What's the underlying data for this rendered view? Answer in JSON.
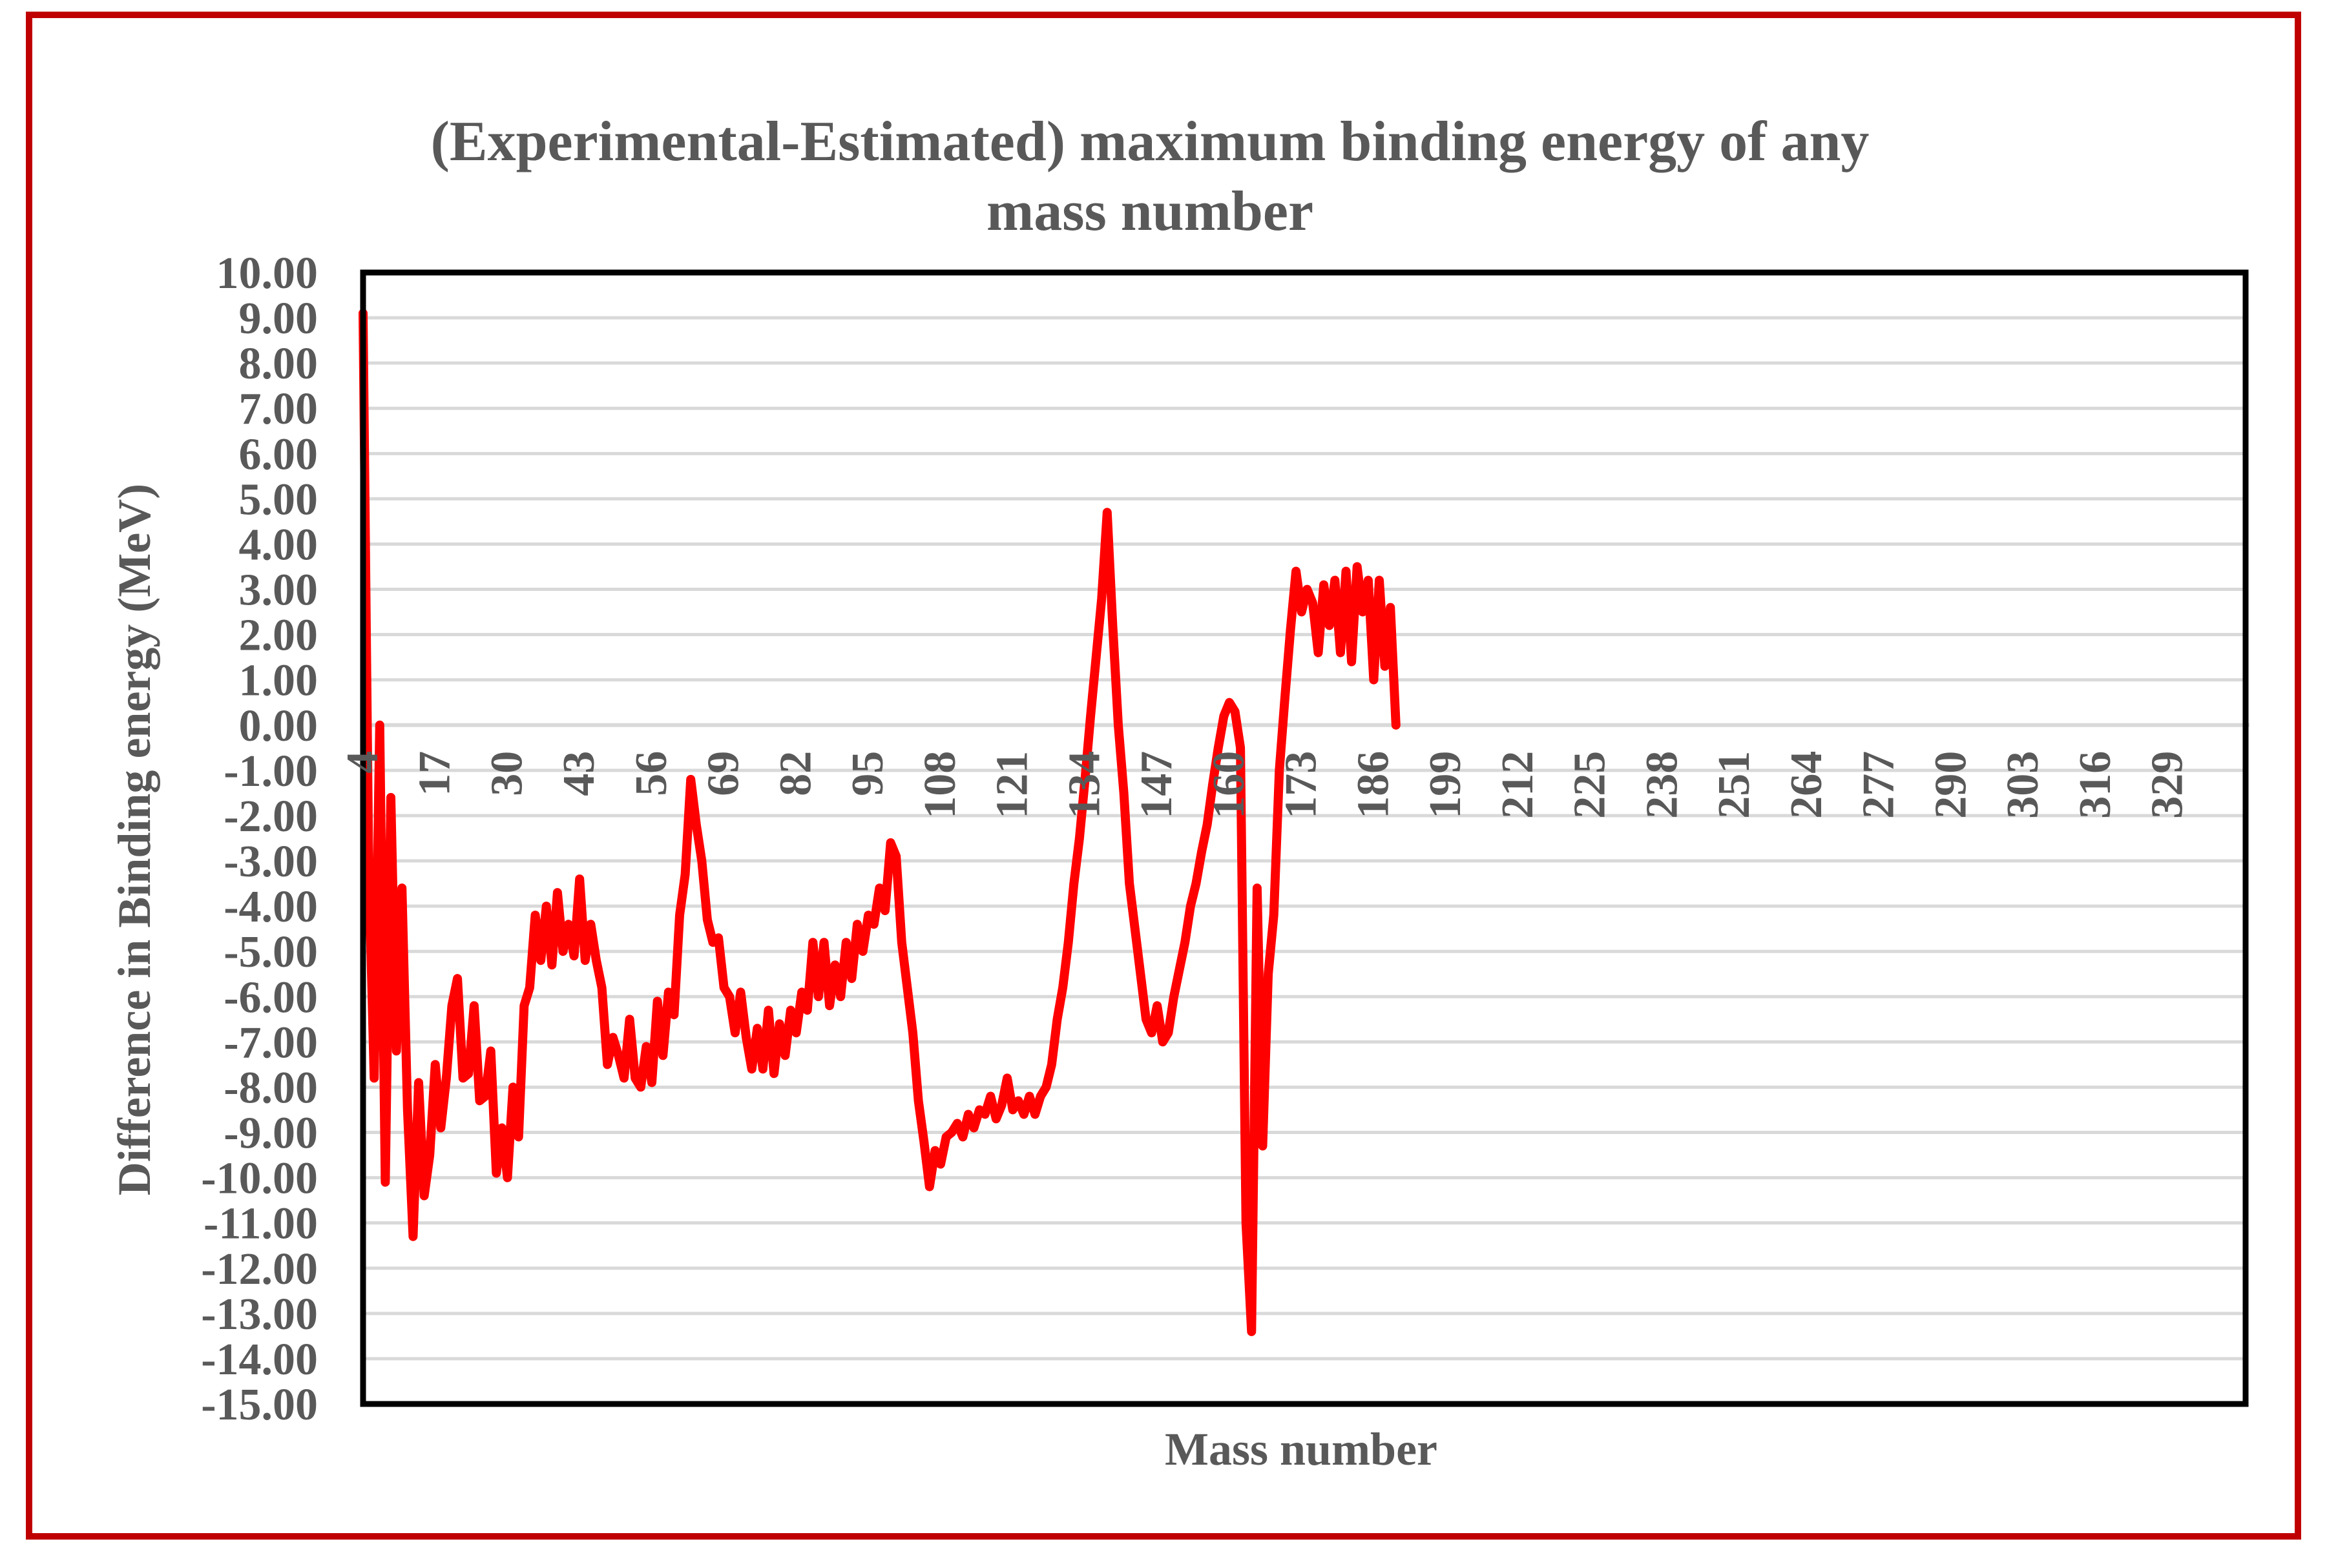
{
  "chart_data": {
    "type": "line",
    "title": "(Experimental-Estimated) maximum binding energy of any mass number",
    "title_lines": [
      "(Experimental-Estimated) maximum binding energy of any",
      "mass number"
    ],
    "xlabel": "Mass number",
    "ylabel": "Difference in Binding energy (MeV)",
    "ylim": [
      -15,
      10
    ],
    "y_ticks": [
      "10.00",
      "9.00",
      "8.00",
      "7.00",
      "6.00",
      "5.00",
      "4.00",
      "3.00",
      "2.00",
      "1.00",
      "0.00",
      "-1.00",
      "-2.00",
      "-3.00",
      "-4.00",
      "-5.00",
      "-6.00",
      "-7.00",
      "-8.00",
      "-9.00",
      "-10.00",
      "-11.00",
      "-12.00",
      "-13.00",
      "-14.00",
      "-15.00"
    ],
    "xlim": [
      4,
      343
    ],
    "x_ticks": [
      "4",
      "17",
      "30",
      "43",
      "56",
      "69",
      "82",
      "95",
      "108",
      "121",
      "134",
      "147",
      "160",
      "173",
      "186",
      "199",
      "212",
      "225",
      "238",
      "251",
      "264",
      "277",
      "290",
      "303",
      "316",
      "329"
    ],
    "grid": true,
    "line_color": "#ff0000",
    "frame_color": "#c00000",
    "series": [
      {
        "name": "Experimental-Estimated",
        "x": [
          4,
          5,
          6,
          7,
          8,
          9,
          10,
          11,
          12,
          13,
          14,
          15,
          16,
          17,
          18,
          19,
          20,
          21,
          22,
          23,
          24,
          25,
          26,
          27,
          28,
          29,
          30,
          31,
          32,
          33,
          34,
          35,
          36,
          37,
          38,
          39,
          40,
          41,
          42,
          43,
          44,
          45,
          46,
          47,
          48,
          49,
          50,
          51,
          52,
          53,
          54,
          55,
          56,
          57,
          58,
          59,
          60,
          61,
          62,
          63,
          64,
          65,
          66,
          67,
          68,
          69,
          70,
          71,
          72,
          73,
          74,
          75,
          76,
          77,
          78,
          79,
          80,
          81,
          82,
          83,
          84,
          85,
          86,
          87,
          88,
          89,
          90,
          91,
          92,
          93,
          94,
          95,
          96,
          97,
          98,
          99,
          100,
          101,
          102,
          103,
          104,
          105,
          106,
          107,
          108,
          109,
          110,
          111,
          112,
          113,
          114,
          115,
          116,
          117,
          118,
          119,
          120,
          121,
          122,
          123,
          124,
          125,
          126,
          127,
          128,
          129,
          130,
          131,
          132,
          133,
          134,
          135,
          136,
          137,
          138,
          139,
          140,
          141,
          142,
          143,
          144,
          145,
          146,
          147,
          148,
          149,
          150,
          151,
          152,
          153,
          154,
          155,
          156,
          157,
          158,
          159,
          160,
          161,
          162,
          163,
          164,
          165,
          166,
          167,
          168,
          169,
          170,
          171,
          172,
          173,
          174,
          175,
          176,
          177,
          178,
          179,
          180,
          181,
          182,
          183,
          184,
          185,
          186,
          187,
          188,
          189,
          190,
          191,
          192,
          193,
          194,
          195,
          196,
          197,
          198,
          199,
          200,
          201,
          202,
          203,
          204,
          205,
          206,
          207,
          208,
          209,
          210,
          211,
          212,
          213,
          214,
          215,
          216,
          217,
          218,
          219,
          220,
          221,
          222,
          223,
          224,
          225,
          226,
          227,
          228,
          229,
          230,
          231,
          232,
          233,
          234,
          235,
          236,
          237,
          238,
          239,
          240,
          241,
          242,
          243,
          244,
          245,
          246,
          247,
          248,
          249,
          250,
          251,
          252,
          253,
          254,
          255,
          256,
          257,
          258,
          259,
          260,
          261,
          262,
          263,
          264,
          265,
          266,
          267,
          268,
          269,
          270,
          271,
          272,
          273,
          274,
          275,
          276,
          277,
          278,
          279,
          280,
          281,
          282,
          283,
          284,
          285,
          286,
          287,
          288,
          289,
          290,
          291,
          292,
          293,
          294,
          295,
          296,
          297
        ],
        "values": [
          9.1,
          -3.0,
          -7.8,
          0.0,
          -10.1,
          -1.6,
          -7.2,
          -3.6,
          -8.5,
          -11.3,
          -7.9,
          -10.4,
          -9.5,
          -7.5,
          -8.9,
          -7.8,
          -6.2,
          -5.6,
          -7.8,
          -7.7,
          -6.2,
          -8.3,
          -8.2,
          -7.2,
          -9.9,
          -8.9,
          -10.0,
          -8.0,
          -9.1,
          -6.2,
          -5.8,
          -4.2,
          -5.2,
          -4.0,
          -5.3,
          -3.7,
          -5.0,
          -4.4,
          -5.1,
          -3.4,
          -5.2,
          -4.4,
          -5.2,
          -5.8,
          -7.5,
          -6.9,
          -7.3,
          -7.8,
          -6.5,
          -7.8,
          -8.0,
          -7.1,
          -7.9,
          -6.1,
          -7.3,
          -5.9,
          -6.4,
          -4.2,
          -3.3,
          -1.2,
          -2.2,
          -3.0,
          -4.3,
          -4.8,
          -4.7,
          -5.8,
          -6.0,
          -6.8,
          -5.9,
          -6.9,
          -7.6,
          -6.7,
          -7.6,
          -6.3,
          -7.7,
          -6.6,
          -7.3,
          -6.3,
          -6.8,
          -5.9,
          -6.3,
          -4.8,
          -6.0,
          -4.8,
          -6.2,
          -5.3,
          -6.0,
          -4.8,
          -5.6,
          -4.4,
          -5.0,
          -4.2,
          -4.4,
          -3.6,
          -4.1,
          -2.6,
          -2.9,
          -4.8,
          -5.8,
          -6.8,
          -8.3,
          -9.2,
          -10.2,
          -9.4,
          -9.7,
          -9.1,
          -9.0,
          -8.8,
          -9.1,
          -8.6,
          -8.9,
          -8.5,
          -8.6,
          -8.2,
          -8.7,
          -8.4,
          -7.8,
          -8.5,
          -8.3,
          -8.6,
          -8.2,
          -8.6,
          -8.2,
          -8.0,
          -7.5,
          -6.5,
          -5.8,
          -4.8,
          -3.5,
          -2.5,
          -1.2,
          0.2,
          1.5,
          2.8,
          4.7,
          2.2,
          0.0,
          -1.5,
          -3.5,
          -4.5,
          -5.5,
          -6.5,
          -6.8,
          -6.2,
          -7.0,
          -6.8,
          -6.0,
          -5.4,
          -4.8,
          -4.0,
          -3.5,
          -2.8,
          -2.2,
          -1.3,
          -0.5,
          0.2,
          0.5,
          0.3,
          -0.5,
          -11.0,
          -13.4,
          -3.6,
          -9.3,
          -5.5,
          -4.2,
          -1.0,
          0.6,
          2.1,
          3.4,
          2.5,
          3.0,
          2.7,
          1.6,
          3.1,
          2.2,
          3.2,
          1.6,
          3.4,
          1.4,
          3.5,
          2.5,
          3.2,
          1.0,
          3.2,
          1.3,
          2.6,
          0.0,
          null,
          null,
          null,
          null,
          null,
          null,
          null,
          null,
          null,
          null,
          null,
          null,
          null,
          null,
          null,
          null,
          null,
          null,
          null,
          null,
          null,
          null,
          null,
          null,
          null,
          null,
          null,
          null,
          null,
          null,
          null,
          null,
          null,
          null,
          null,
          null,
          null,
          null,
          null,
          null,
          null,
          null,
          null,
          null,
          null,
          null,
          null,
          null,
          null,
          null,
          null,
          null,
          null,
          null,
          null,
          null,
          null,
          null,
          null,
          null,
          null,
          null,
          null,
          null,
          null,
          null,
          null,
          null,
          null,
          null,
          null,
          null,
          null,
          null,
          null,
          null,
          null,
          null,
          null,
          null,
          null,
          null,
          null,
          null,
          null,
          null,
          null,
          null,
          null,
          null,
          null,
          null,
          null,
          null,
          null,
          null,
          null,
          null,
          null,
          null,
          null,
          null,
          null,
          null,
          null,
          null,
          null
        ]
      }
    ]
  }
}
